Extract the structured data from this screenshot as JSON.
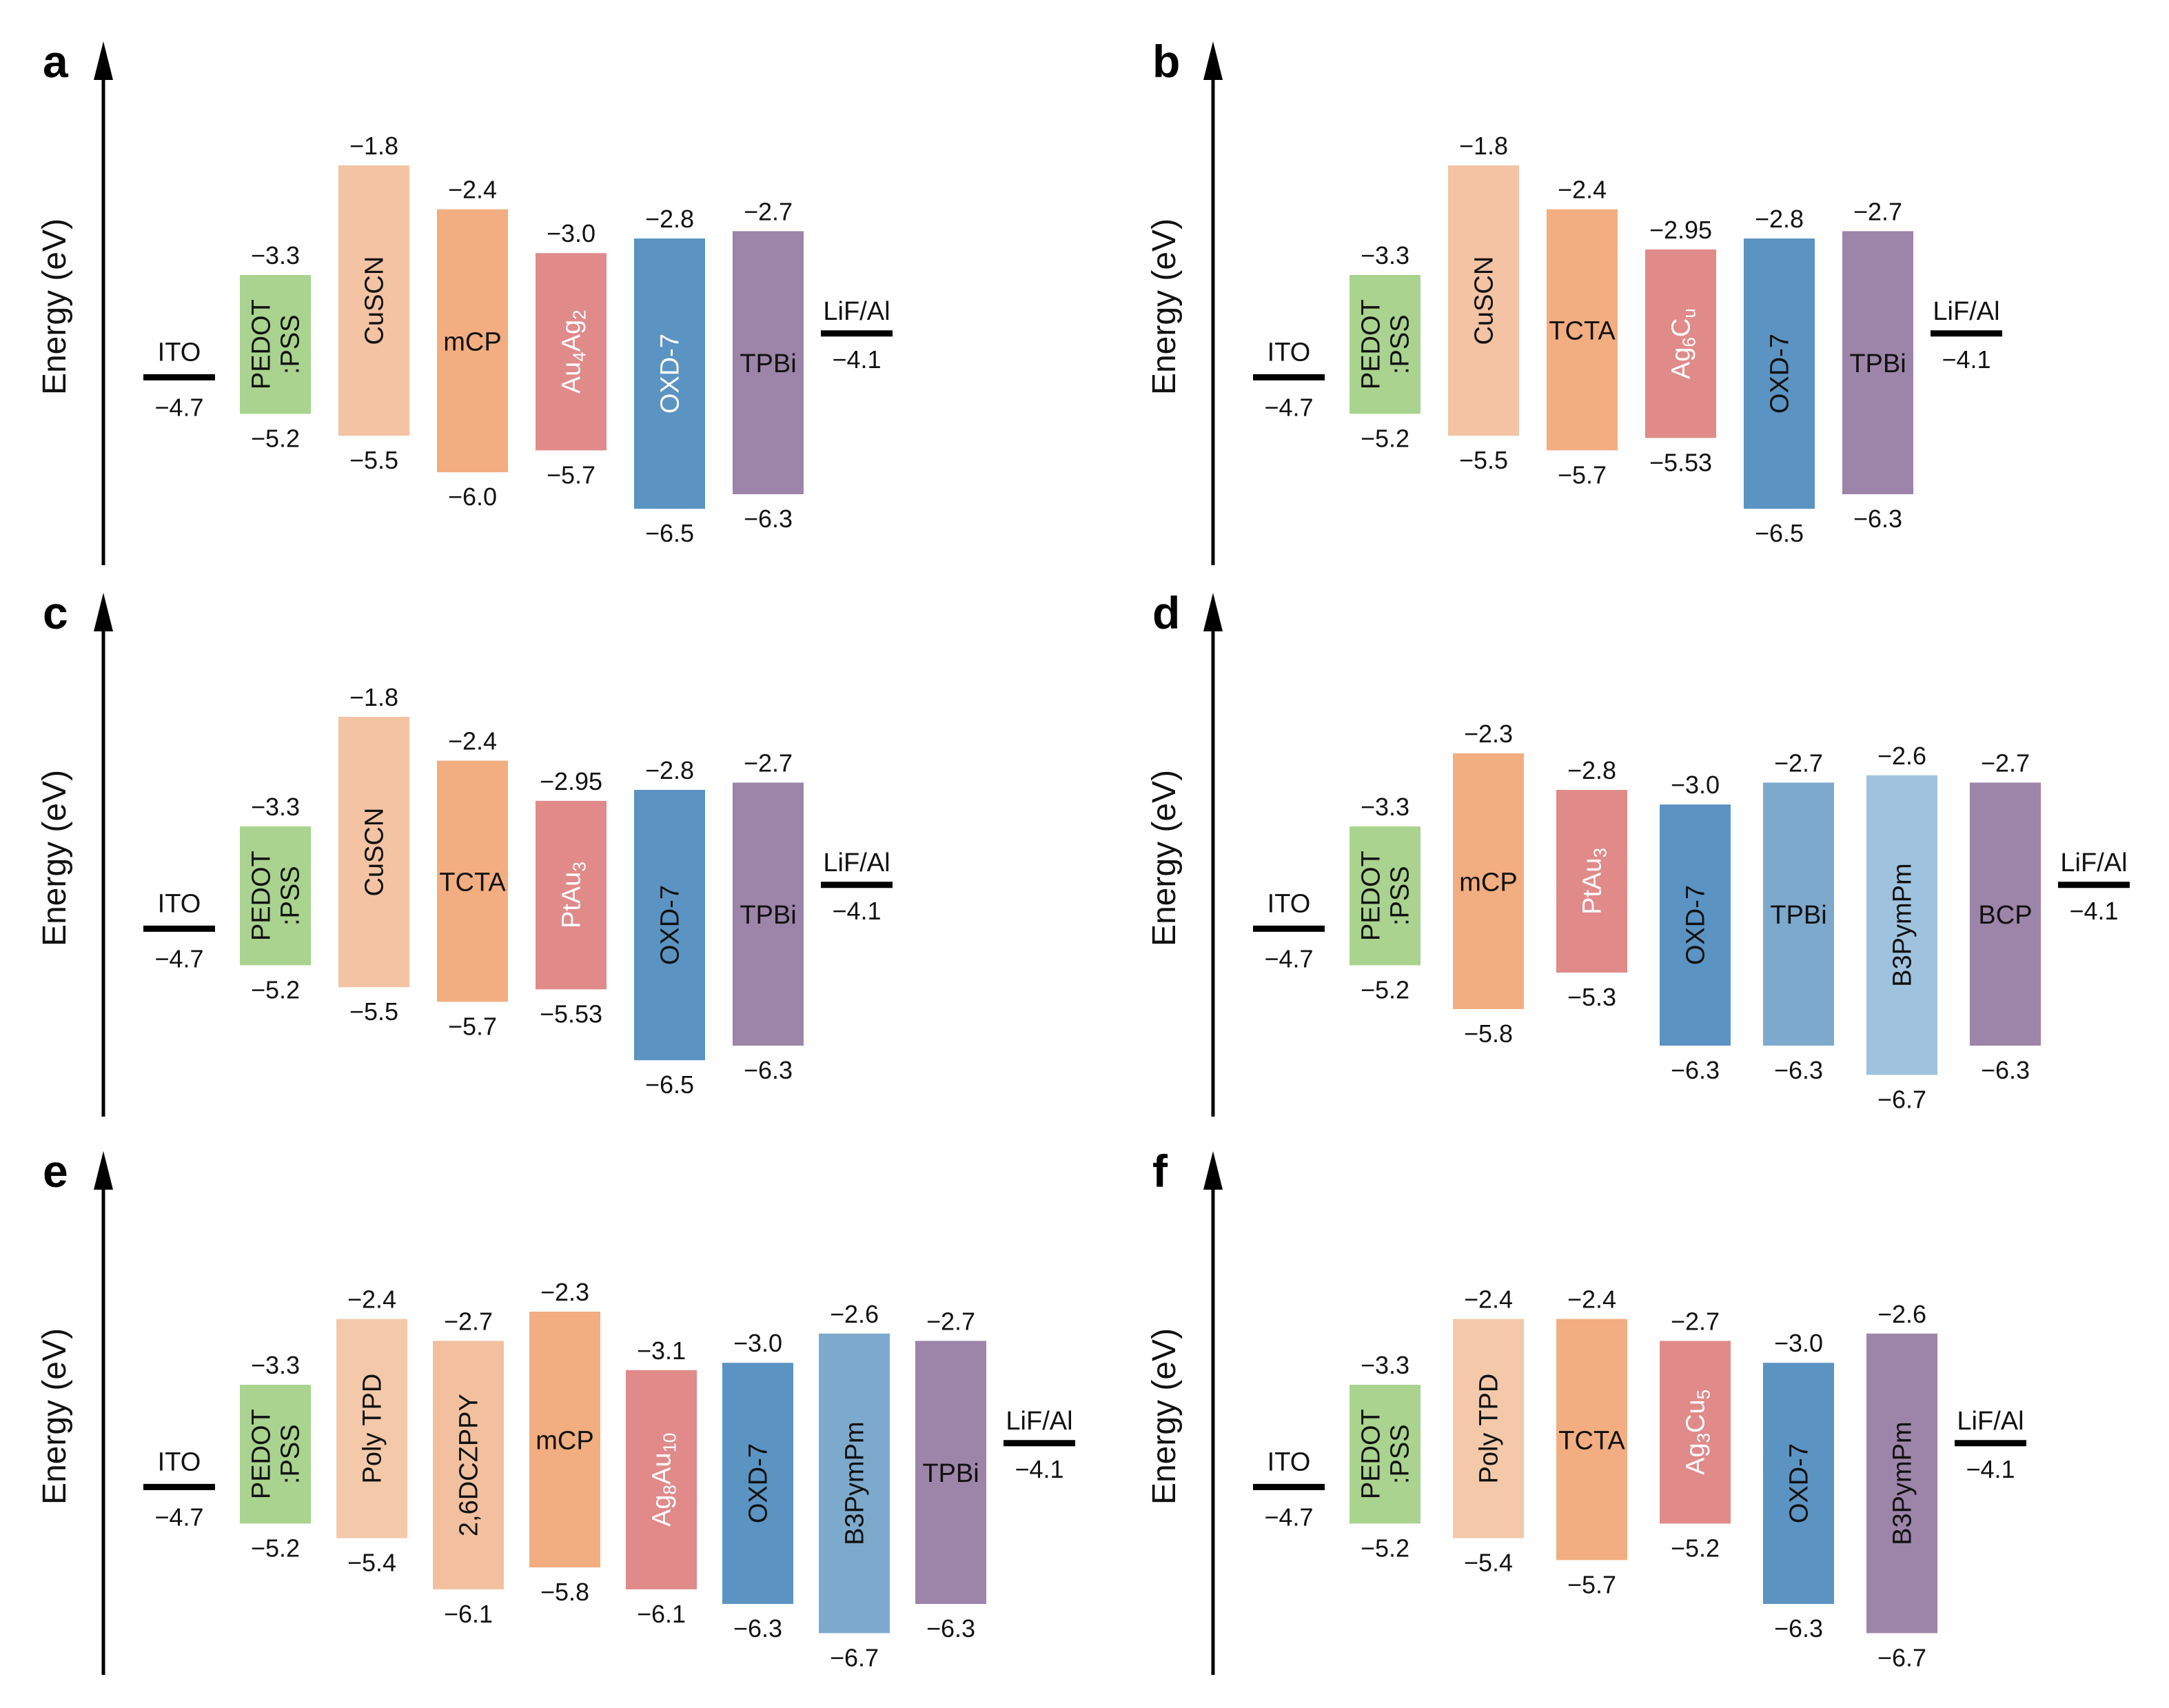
{
  "axis_label": "Energy (eV)",
  "colors": {
    "PEDOT:PSS": "#a9d38e",
    "CuSCN": "#f3c3a3",
    "Poly TPD": "#f3c9aa",
    "2,6DCZPPY": "#f2c09f",
    "mCP": "#f2ad80",
    "TCTA": "#f2ad80",
    "cluster": "#e08a8a",
    "OXD-7": "#5b93c2",
    "TPBi_blue": "#7da9cd",
    "B3PymPm_light": "#9fc3df",
    "B3PymPm_blue": "#7da9cd",
    "TPBi": "#9d84a9",
    "BCP": "#9d84a9",
    "B3PymPm_purple": "#9d84a9"
  },
  "panels": [
    {
      "letter": "a",
      "electrodes": {
        "anode": {
          "label": "ITO",
          "value": "−4.7",
          "level": -4.7
        },
        "cathode": {
          "label": "LiF/Al",
          "value": "−4.1",
          "level": -4.1
        }
      },
      "layers": [
        {
          "name": "PEDOT",
          "name2": ":PSS",
          "top": -3.3,
          "bottom": -5.2,
          "top_label": "−3.3",
          "bottom_label": "−5.2",
          "color_key": "PEDOT:PSS",
          "vertical": true
        },
        {
          "name": "CuSCN",
          "top": -1.8,
          "bottom": -5.5,
          "top_label": "−1.8",
          "bottom_label": "−5.5",
          "color_key": "CuSCN",
          "vertical": true
        },
        {
          "name": "mCP",
          "top": -2.4,
          "bottom": -6.0,
          "top_label": "−2.4",
          "bottom_label": "−6.0",
          "color_key": "mCP",
          "vertical": false
        },
        {
          "name": "Au",
          "sub1": "4",
          "name_b": "Ag",
          "sub2": "2",
          "top": -3.0,
          "bottom": -5.7,
          "top_label": "−3.0",
          "bottom_label": "−5.7",
          "color_key": "cluster",
          "vertical": true,
          "light": true
        },
        {
          "name": "OXD-7",
          "top": -2.8,
          "bottom": -6.5,
          "top_label": "−2.8",
          "bottom_label": "−6.5",
          "color_key": "OXD-7",
          "vertical": true,
          "light": true
        },
        {
          "name": "TPBi",
          "top": -2.7,
          "bottom": -6.3,
          "top_label": "−2.7",
          "bottom_label": "−6.3",
          "color_key": "TPBi",
          "vertical": false
        }
      ]
    },
    {
      "letter": "b",
      "electrodes": {
        "anode": {
          "label": "ITO",
          "value": "−4.7",
          "level": -4.7
        },
        "cathode": {
          "label": "LiF/Al",
          "value": "−4.1",
          "level": -4.1
        }
      },
      "layers": [
        {
          "name": "PEDOT",
          "name2": ":PSS",
          "top": -3.3,
          "bottom": -5.2,
          "top_label": "−3.3",
          "bottom_label": "−5.2",
          "color_key": "PEDOT:PSS",
          "vertical": true
        },
        {
          "name": "CuSCN",
          "top": -1.8,
          "bottom": -5.5,
          "top_label": "−1.8",
          "bottom_label": "−5.5",
          "color_key": "CuSCN",
          "vertical": true
        },
        {
          "name": "TCTA",
          "top": -2.4,
          "bottom": -5.7,
          "top_label": "−2.4",
          "bottom_label": "−5.7",
          "color_key": "TCTA",
          "vertical": false
        },
        {
          "name": "Ag",
          "sub1": "6",
          "name_b": "C",
          "sub2": "u",
          "top": -2.95,
          "bottom": -5.53,
          "top_label": "−2.95",
          "bottom_label": "−5.53",
          "color_key": "cluster",
          "vertical": true,
          "light": true
        },
        {
          "name": "OXD-7",
          "top": -2.8,
          "bottom": -6.5,
          "top_label": "−2.8",
          "bottom_label": "−6.5",
          "color_key": "OXD-7",
          "vertical": true
        },
        {
          "name": "TPBi",
          "top": -2.7,
          "bottom": -6.3,
          "top_label": "−2.7",
          "bottom_label": "−6.3",
          "color_key": "TPBi",
          "vertical": false
        }
      ]
    },
    {
      "letter": "c",
      "electrodes": {
        "anode": {
          "label": "ITO",
          "value": "−4.7",
          "level": -4.7
        },
        "cathode": {
          "label": "LiF/Al",
          "value": "−4.1",
          "level": -4.1
        }
      },
      "layers": [
        {
          "name": "PEDOT",
          "name2": ":PSS",
          "top": -3.3,
          "bottom": -5.2,
          "top_label": "−3.3",
          "bottom_label": "−5.2",
          "color_key": "PEDOT:PSS",
          "vertical": true
        },
        {
          "name": "CuSCN",
          "top": -1.8,
          "bottom": -5.5,
          "top_label": "−1.8",
          "bottom_label": "−5.5",
          "color_key": "CuSCN",
          "vertical": true
        },
        {
          "name": "TCTA",
          "top": -2.4,
          "bottom": -5.7,
          "top_label": "−2.4",
          "bottom_label": "−5.7",
          "color_key": "TCTA",
          "vertical": false
        },
        {
          "name": "PtA",
          "name_b": "u",
          "sub2": "3",
          "top": -2.95,
          "bottom": -5.53,
          "top_label": "−2.95",
          "bottom_label": "−5.53",
          "color_key": "cluster",
          "vertical": true,
          "light": true
        },
        {
          "name": "OXD-7",
          "top": -2.8,
          "bottom": -6.5,
          "top_label": "−2.8",
          "bottom_label": "−6.5",
          "color_key": "OXD-7",
          "vertical": true
        },
        {
          "name": "TPBi",
          "top": -2.7,
          "bottom": -6.3,
          "top_label": "−2.7",
          "bottom_label": "−6.3",
          "color_key": "TPBi",
          "vertical": false
        }
      ]
    },
    {
      "letter": "d",
      "electrodes": {
        "anode": {
          "label": "ITO",
          "value": "−4.7",
          "level": -4.7
        },
        "cathode": {
          "label": "LiF/Al",
          "value": "−4.1",
          "level": -4.1
        }
      },
      "layers": [
        {
          "name": "PEDOT",
          "name2": ":PSS",
          "top": -3.3,
          "bottom": -5.2,
          "top_label": "−3.3",
          "bottom_label": "−5.2",
          "color_key": "PEDOT:PSS",
          "vertical": true
        },
        {
          "name": "mCP",
          "top": -2.3,
          "bottom": -5.8,
          "top_label": "−2.3",
          "bottom_label": "−5.8",
          "color_key": "mCP",
          "vertical": false
        },
        {
          "name": "PtAu",
          "sub2": "3",
          "top": -2.8,
          "bottom": -5.3,
          "top_label": "−2.8",
          "bottom_label": "−5.3",
          "color_key": "cluster",
          "vertical": true,
          "light": true
        },
        {
          "name": "OXD-7",
          "top": -3.0,
          "bottom": -6.3,
          "top_label": "−3.0",
          "bottom_label": "−6.3",
          "color_key": "OXD-7",
          "vertical": true
        },
        {
          "name": "TPBi",
          "top": -2.7,
          "bottom": -6.3,
          "top_label": "−2.7",
          "bottom_label": "−6.3",
          "color_key": "TPBi_blue",
          "vertical": false
        },
        {
          "name": "B3PymPm",
          "top": -2.6,
          "bottom": -6.7,
          "top_label": "−2.6",
          "bottom_label": "−6.7",
          "color_key": "B3PymPm_light",
          "vertical": true
        },
        {
          "name": "BCP",
          "top": -2.7,
          "bottom": -6.3,
          "top_label": "−2.7",
          "bottom_label": "−6.3",
          "color_key": "BCP",
          "vertical": false
        }
      ]
    },
    {
      "letter": "e",
      "electrodes": {
        "anode": {
          "label": "ITO",
          "value": "−4.7",
          "level": -4.7
        },
        "cathode": {
          "label": "LiF/Al",
          "value": "−4.1",
          "level": -4.1
        }
      },
      "layers": [
        {
          "name": "PEDOT",
          "name2": ":PSS",
          "top": -3.3,
          "bottom": -5.2,
          "top_label": "−3.3",
          "bottom_label": "−5.2",
          "color_key": "PEDOT:PSS",
          "vertical": true
        },
        {
          "name": "Poly TPD",
          "top": -2.4,
          "bottom": -5.4,
          "top_label": "−2.4",
          "bottom_label": "−5.4",
          "color_key": "Poly TPD",
          "vertical": true
        },
        {
          "name": "2,6DCZPPY",
          "top": -2.7,
          "bottom": -6.1,
          "top_label": "−2.7",
          "bottom_label": "−6.1",
          "color_key": "2,6DCZPPY",
          "vertical": true
        },
        {
          "name": "mCP",
          "top": -2.3,
          "bottom": -5.8,
          "top_label": "−2.3",
          "bottom_label": "−5.8",
          "color_key": "mCP",
          "vertical": false
        },
        {
          "name": "Ag",
          "sub1": "8",
          "name_b": "Au",
          "sub2": "10",
          "top": -3.1,
          "bottom": -6.1,
          "top_label": "−3.1",
          "bottom_label": "−6.1",
          "color_key": "cluster",
          "vertical": true,
          "light": true
        },
        {
          "name": "OXD-7",
          "top": -3.0,
          "bottom": -6.3,
          "top_label": "−3.0",
          "bottom_label": "−6.3",
          "color_key": "OXD-7",
          "vertical": true
        },
        {
          "name": "B3PymPm",
          "top": -2.6,
          "bottom": -6.7,
          "top_label": "−2.6",
          "bottom_label": "−6.7",
          "color_key": "B3PymPm_blue",
          "vertical": true
        },
        {
          "name": "TPBi",
          "top": -2.7,
          "bottom": -6.3,
          "top_label": "−2.7",
          "bottom_label": "−6.3",
          "color_key": "TPBi",
          "vertical": false
        }
      ]
    },
    {
      "letter": "f",
      "electrodes": {
        "anode": {
          "label": "ITO",
          "value": "−4.7",
          "level": -4.7
        },
        "cathode": {
          "label": "LiF/Al",
          "value": "−4.1",
          "level": -4.1
        }
      },
      "layers": [
        {
          "name": "PEDOT",
          "name2": ":PSS",
          "top": -3.3,
          "bottom": -5.2,
          "top_label": "−3.3",
          "bottom_label": "−5.2",
          "color_key": "PEDOT:PSS",
          "vertical": true
        },
        {
          "name": "Poly TPD",
          "top": -2.4,
          "bottom": -5.4,
          "top_label": "−2.4",
          "bottom_label": "−5.4",
          "color_key": "Poly TPD",
          "vertical": true
        },
        {
          "name": "TCTA",
          "top": -2.4,
          "bottom": -5.7,
          "top_label": "−2.4",
          "bottom_label": "−5.7",
          "color_key": "TCTA",
          "vertical": false
        },
        {
          "name": "Ag",
          "sub1": "3",
          "name_b": "Cu",
          "sub2": "5",
          "top": -2.7,
          "bottom": -5.2,
          "top_label": "−2.7",
          "bottom_label": "−5.2",
          "color_key": "cluster",
          "vertical": true,
          "light": true
        },
        {
          "name": "OXD-7",
          "top": -3.0,
          "bottom": -6.3,
          "top_label": "−3.0",
          "bottom_label": "−6.3",
          "color_key": "OXD-7",
          "vertical": true
        },
        {
          "name": "B3PymPm",
          "top": -2.6,
          "bottom": -6.7,
          "top_label": "−2.6",
          "bottom_label": "−6.7",
          "color_key": "B3PymPm_purple",
          "vertical": true
        }
      ]
    }
  ]
}
